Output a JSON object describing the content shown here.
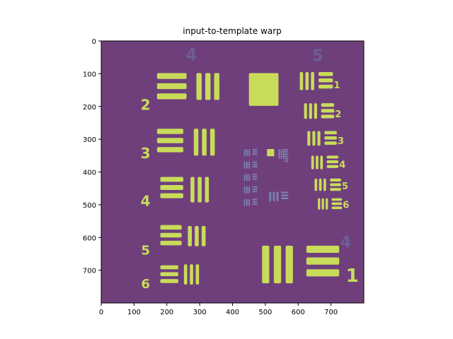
{
  "chart_data": {
    "type": "heatmap",
    "title": "input-to-template warp",
    "xlabel": "",
    "ylabel": "",
    "xlim": [
      0,
      800
    ],
    "ylim": [
      800,
      0
    ],
    "xticks": [
      0,
      100,
      200,
      300,
      400,
      500,
      600,
      700
    ],
    "yticks": [
      0,
      100,
      200,
      300,
      400,
      500,
      600,
      700
    ],
    "colors": {
      "background": "#6f3f7c",
      "bars": "#c9dc5a",
      "faint_digits": "#6c73a6",
      "small_bars": "#7a86b2"
    },
    "group_labels": [
      "2",
      "3",
      "4",
      "5",
      "6",
      "1",
      "2",
      "3",
      "4",
      "5",
      "6",
      "1",
      "4",
      "5",
      "4"
    ]
  }
}
